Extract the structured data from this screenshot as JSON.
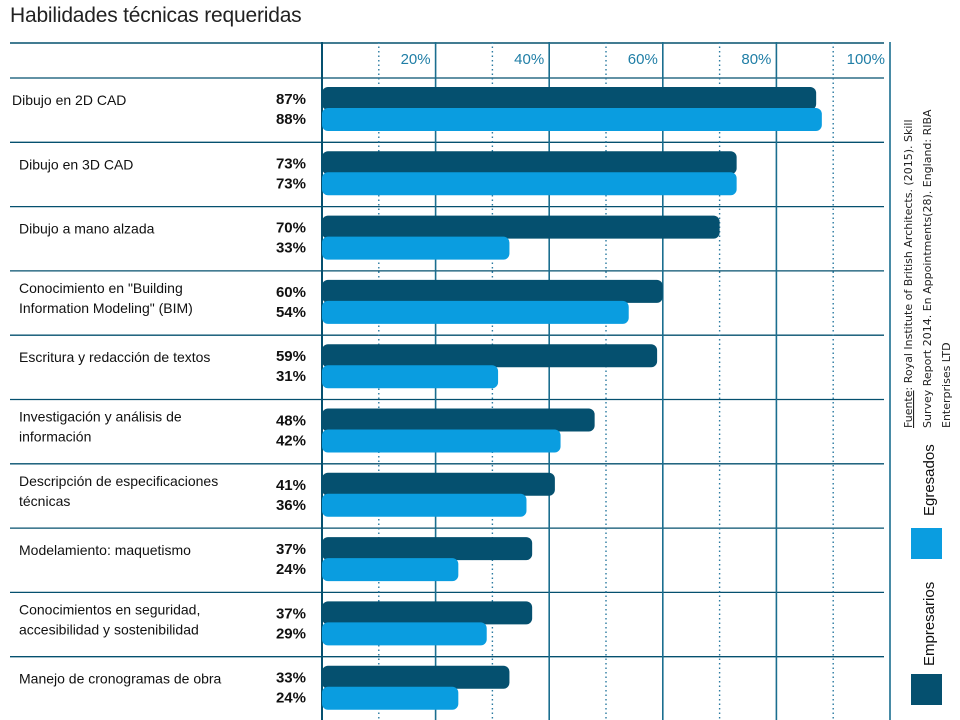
{
  "chart_data": {
    "type": "bar",
    "orientation": "horizontal",
    "title": "Habilidades técnicas requeridas",
    "categories": [
      [
        "Dibujo en 2D CAD"
      ],
      [
        "Dibujo en 3D CAD"
      ],
      [
        "Dibujo a mano alzada"
      ],
      [
        "Conocimiento en \"Building",
        "Information Modeling\" (BIM)"
      ],
      [
        "Escritura y redacción de textos"
      ],
      [
        "Investigación y análisis de",
        "información"
      ],
      [
        "Descripción de especificaciones",
        "técnicas"
      ],
      [
        "Modelamiento: maquetismo"
      ],
      [
        "Conocimientos en seguridad,",
        "accesibilidad y sostenibilidad"
      ],
      [
        "Manejo de cronogramas de obra"
      ]
    ],
    "series": [
      {
        "name": "Empresarios",
        "color": "#05506f",
        "values": [
          87,
          73,
          70,
          60,
          59,
          48,
          41,
          37,
          37,
          33
        ]
      },
      {
        "name": "Egresados",
        "color": "#0a9de0",
        "values": [
          88,
          73,
          33,
          54,
          31,
          42,
          36,
          24,
          29,
          24
        ]
      }
    ],
    "value_suffix": "%",
    "x_ticks": [
      "20%",
      "40%",
      "60%",
      "80%",
      "100%"
    ],
    "xlim": [
      0,
      100
    ],
    "grid": true,
    "legend": "right-vertical",
    "source": {
      "label": "Fuente",
      "lines": [
        ": Royal Institute of British Architects. (2015). Skill",
        "Survey Report 2014. En Appointments(28). England: RIBA",
        "Enterprises LTD"
      ]
    }
  }
}
